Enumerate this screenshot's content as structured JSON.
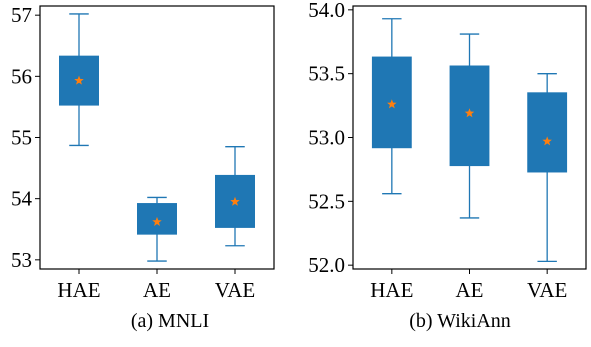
{
  "chart_data": [
    {
      "type": "box",
      "caption": "(a) MNLI",
      "categories": [
        "HAE",
        "AE",
        "VAE"
      ],
      "ylim": [
        52.85,
        57.15
      ],
      "yticks": [
        53,
        54,
        55,
        56,
        57
      ],
      "ytick_labels": [
        "53",
        "54",
        "55",
        "56",
        "57"
      ],
      "boxes": [
        {
          "category": "HAE",
          "whisker_low": 54.87,
          "q1": 55.53,
          "q3": 56.33,
          "whisker_high": 57.02,
          "mean": 55.93
        },
        {
          "category": "AE",
          "whisker_low": 52.98,
          "q1": 53.42,
          "q3": 53.92,
          "whisker_high": 54.02,
          "mean": 53.62
        },
        {
          "category": "VAE",
          "whisker_low": 53.23,
          "q1": 53.53,
          "q3": 54.38,
          "whisker_high": 54.85,
          "mean": 53.95
        }
      ]
    },
    {
      "type": "box",
      "caption": "(b) WikiAnn",
      "categories": [
        "HAE",
        "AE",
        "VAE"
      ],
      "ylim": [
        51.97,
        54.03
      ],
      "yticks": [
        52.0,
        52.5,
        53.0,
        53.5,
        54.0
      ],
      "ytick_labels": [
        "52.0",
        "52.5",
        "53.0",
        "53.5",
        "54.0"
      ],
      "boxes": [
        {
          "category": "HAE",
          "whisker_low": 52.56,
          "q1": 52.92,
          "q3": 53.63,
          "whisker_high": 53.93,
          "mean": 53.26
        },
        {
          "category": "AE",
          "whisker_low": 52.37,
          "q1": 52.78,
          "q3": 53.56,
          "whisker_high": 53.81,
          "mean": 53.19
        },
        {
          "category": "VAE",
          "whisker_low": 52.03,
          "q1": 52.73,
          "q3": 53.35,
          "whisker_high": 53.5,
          "mean": 52.97
        }
      ]
    }
  ],
  "colors": {
    "box": "#1f77b4",
    "mean": "#ff7f0e",
    "axis": "#000000"
  }
}
